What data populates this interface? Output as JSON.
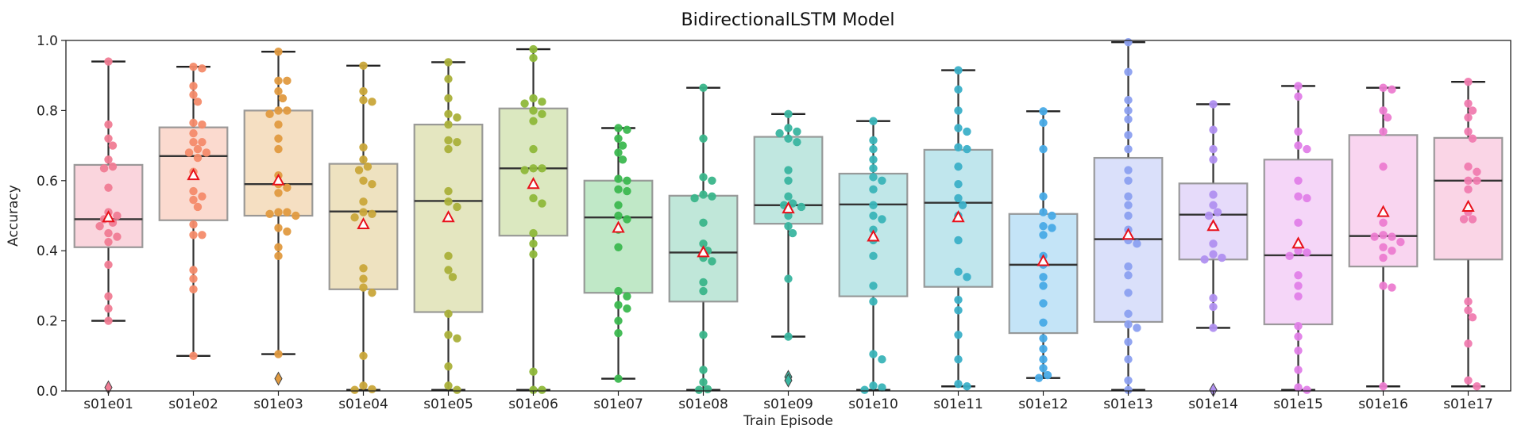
{
  "chart_data": {
    "type": "box",
    "title": "BidirectionalLSTM Model",
    "xlabel": "Train Episode",
    "ylabel": "Accuracy",
    "ylim": [
      0,
      1.0
    ],
    "yticks": [
      "0.0",
      "0.2",
      "0.4",
      "0.6",
      "0.8",
      "1.0"
    ],
    "grid": false,
    "mean_marker": "red-edged triangle",
    "categories": [
      "s01e01",
      "s01e02",
      "s01e03",
      "s01e04",
      "s01e05",
      "s01e06",
      "s01e07",
      "s01e08",
      "s01e09",
      "s01e10",
      "s01e11",
      "s01e12",
      "s01e13",
      "s01e14",
      "s01e15",
      "s01e16",
      "s01e17"
    ],
    "colors": [
      "#f07c94",
      "#f48b6a",
      "#e09a40",
      "#c9a63a",
      "#aab03a",
      "#8fb83a",
      "#3cb850",
      "#3ab58a",
      "#3ab5a0",
      "#3ab4b8",
      "#3cb0c8",
      "#48aae6",
      "#8ca0f0",
      "#b090f0",
      "#e080e8",
      "#ec7cd0",
      "#f07cb0"
    ],
    "boxes": [
      {
        "whislo": 0.2,
        "q1": 0.41,
        "med": 0.49,
        "q3": 0.645,
        "whishi": 0.94,
        "mean": 0.495,
        "outliers": [
          0.01
        ],
        "points": [
          0.94,
          0.76,
          0.72,
          0.7,
          0.66,
          0.64,
          0.635,
          0.58,
          0.51,
          0.5,
          0.49,
          0.48,
          0.47,
          0.45,
          0.44,
          0.425,
          0.36,
          0.27,
          0.235,
          0.2
        ]
      },
      {
        "whislo": 0.1,
        "q1": 0.487,
        "med": 0.67,
        "q3": 0.752,
        "whishi": 0.925,
        "mean": 0.615,
        "outliers": [],
        "points": [
          0.925,
          0.92,
          0.87,
          0.845,
          0.825,
          0.765,
          0.76,
          0.735,
          0.71,
          0.71,
          0.69,
          0.68,
          0.68,
          0.665,
          0.625,
          0.57,
          0.555,
          0.545,
          0.525,
          0.475,
          0.445,
          0.445,
          0.345,
          0.32,
          0.29,
          0.1
        ]
      },
      {
        "whislo": 0.105,
        "q1": 0.5,
        "med": 0.59,
        "q3": 0.8,
        "whishi": 0.968,
        "mean": 0.6,
        "outliers": [
          0.035
        ],
        "points": [
          0.968,
          0.885,
          0.885,
          0.855,
          0.835,
          0.8,
          0.8,
          0.79,
          0.76,
          0.72,
          0.69,
          0.615,
          0.59,
          0.58,
          0.565,
          0.51,
          0.51,
          0.505,
          0.5,
          0.465,
          0.455,
          0.41,
          0.385,
          0.105
        ]
      },
      {
        "whislo": 0.003,
        "q1": 0.29,
        "med": 0.512,
        "q3": 0.648,
        "whishi": 0.928,
        "mean": 0.475,
        "outliers": [],
        "points": [
          0.928,
          0.855,
          0.83,
          0.825,
          0.695,
          0.66,
          0.64,
          0.63,
          0.6,
          0.59,
          0.54,
          0.51,
          0.505,
          0.495,
          0.35,
          0.32,
          0.295,
          0.28,
          0.1,
          0.015,
          0.005,
          0.003
        ]
      },
      {
        "whislo": 0.003,
        "q1": 0.225,
        "med": 0.542,
        "q3": 0.76,
        "whishi": 0.938,
        "mean": 0.495,
        "outliers": [],
        "points": [
          0.938,
          0.89,
          0.835,
          0.79,
          0.78,
          0.76,
          0.715,
          0.71,
          0.69,
          0.57,
          0.54,
          0.525,
          0.385,
          0.345,
          0.325,
          0.22,
          0.16,
          0.15,
          0.07,
          0.015,
          0.003
        ]
      },
      {
        "whislo": 0.003,
        "q1": 0.443,
        "med": 0.635,
        "q3": 0.806,
        "whishi": 0.975,
        "mean": 0.59,
        "outliers": [],
        "points": [
          0.975,
          0.95,
          0.835,
          0.825,
          0.82,
          0.8,
          0.79,
          0.77,
          0.69,
          0.635,
          0.635,
          0.63,
          0.55,
          0.535,
          0.45,
          0.42,
          0.39,
          0.055,
          0.003,
          0.003
        ]
      },
      {
        "whislo": 0.035,
        "q1": 0.28,
        "med": 0.495,
        "q3": 0.6,
        "whishi": 0.75,
        "mean": 0.465,
        "outliers": [],
        "points": [
          0.75,
          0.745,
          0.72,
          0.7,
          0.68,
          0.66,
          0.605,
          0.6,
          0.575,
          0.57,
          0.53,
          0.5,
          0.49,
          0.46,
          0.41,
          0.285,
          0.27,
          0.245,
          0.235,
          0.2,
          0.165,
          0.035
        ]
      },
      {
        "whislo": 0.003,
        "q1": 0.255,
        "med": 0.395,
        "q3": 0.557,
        "whishi": 0.865,
        "mean": 0.395,
        "outliers": [],
        "points": [
          0.865,
          0.72,
          0.61,
          0.6,
          0.56,
          0.555,
          0.55,
          0.48,
          0.42,
          0.4,
          0.38,
          0.37,
          0.31,
          0.285,
          0.16,
          0.06,
          0.025,
          0.005,
          0.003
        ]
      },
      {
        "whislo": 0.155,
        "q1": 0.477,
        "med": 0.53,
        "q3": 0.725,
        "whishi": 0.79,
        "mean": 0.52,
        "outliers": [
          0.04,
          0.03
        ],
        "points": [
          0.79,
          0.75,
          0.74,
          0.735,
          0.72,
          0.71,
          0.63,
          0.6,
          0.555,
          0.535,
          0.53,
          0.525,
          0.5,
          0.47,
          0.45,
          0.32,
          0.155
        ]
      },
      {
        "whislo": 0.003,
        "q1": 0.27,
        "med": 0.532,
        "q3": 0.62,
        "whishi": 0.77,
        "mean": 0.44,
        "outliers": [],
        "points": [
          0.77,
          0.715,
          0.69,
          0.66,
          0.635,
          0.61,
          0.6,
          0.575,
          0.53,
          0.5,
          0.49,
          0.46,
          0.43,
          0.385,
          0.3,
          0.255,
          0.105,
          0.09,
          0.015,
          0.01,
          0.003
        ]
      },
      {
        "whislo": 0.013,
        "q1": 0.297,
        "med": 0.537,
        "q3": 0.688,
        "whishi": 0.915,
        "mean": 0.495,
        "outliers": [],
        "points": [
          0.915,
          0.86,
          0.8,
          0.75,
          0.74,
          0.695,
          0.69,
          0.64,
          0.59,
          0.55,
          0.53,
          0.5,
          0.43,
          0.34,
          0.325,
          0.26,
          0.23,
          0.16,
          0.09,
          0.02,
          0.013
        ]
      },
      {
        "whislo": 0.037,
        "q1": 0.165,
        "med": 0.36,
        "q3": 0.505,
        "whishi": 0.798,
        "mean": 0.37,
        "outliers": [],
        "points": [
          0.798,
          0.765,
          0.69,
          0.555,
          0.51,
          0.5,
          0.47,
          0.465,
          0.445,
          0.385,
          0.36,
          0.325,
          0.3,
          0.25,
          0.195,
          0.15,
          0.12,
          0.09,
          0.065,
          0.045,
          0.037
        ]
      },
      {
        "whislo": 0.003,
        "q1": 0.197,
        "med": 0.433,
        "q3": 0.665,
        "whishi": 0.995,
        "mean": 0.445,
        "outliers": [],
        "points": [
          0.995,
          0.91,
          0.83,
          0.8,
          0.775,
          0.73,
          0.69,
          0.63,
          0.6,
          0.555,
          0.53,
          0.5,
          0.46,
          0.43,
          0.42,
          0.355,
          0.33,
          0.28,
          0.22,
          0.19,
          0.18,
          0.14,
          0.09,
          0.03,
          0.003
        ]
      },
      {
        "whislo": 0.18,
        "q1": 0.375,
        "med": 0.503,
        "q3": 0.592,
        "whishi": 0.818,
        "mean": 0.47,
        "outliers": [
          0.003
        ],
        "points": [
          0.818,
          0.745,
          0.69,
          0.66,
          0.56,
          0.53,
          0.51,
          0.5,
          0.47,
          0.42,
          0.39,
          0.38,
          0.375,
          0.265,
          0.24,
          0.18
        ]
      },
      {
        "whislo": 0.003,
        "q1": 0.19,
        "med": 0.387,
        "q3": 0.66,
        "whishi": 0.87,
        "mean": 0.42,
        "outliers": [],
        "points": [
          0.87,
          0.84,
          0.74,
          0.7,
          0.69,
          0.6,
          0.555,
          0.55,
          0.48,
          0.4,
          0.395,
          0.385,
          0.33,
          0.3,
          0.27,
          0.185,
          0.155,
          0.115,
          0.06,
          0.01,
          0.003
        ]
      },
      {
        "whislo": 0.013,
        "q1": 0.355,
        "med": 0.442,
        "q3": 0.73,
        "whishi": 0.865,
        "mean": 0.51,
        "outliers": [],
        "points": [
          0.865,
          0.86,
          0.8,
          0.78,
          0.74,
          0.64,
          0.48,
          0.445,
          0.44,
          0.44,
          0.425,
          0.41,
          0.4,
          0.38,
          0.3,
          0.295,
          0.013
        ]
      },
      {
        "whislo": 0.013,
        "q1": 0.375,
        "med": 0.6,
        "q3": 0.722,
        "whishi": 0.882,
        "mean": 0.525,
        "outliers": [],
        "points": [
          0.882,
          0.82,
          0.8,
          0.78,
          0.74,
          0.72,
          0.64,
          0.625,
          0.6,
          0.6,
          0.575,
          0.51,
          0.49,
          0.49,
          0.255,
          0.23,
          0.21,
          0.135,
          0.03,
          0.013
        ]
      }
    ]
  }
}
